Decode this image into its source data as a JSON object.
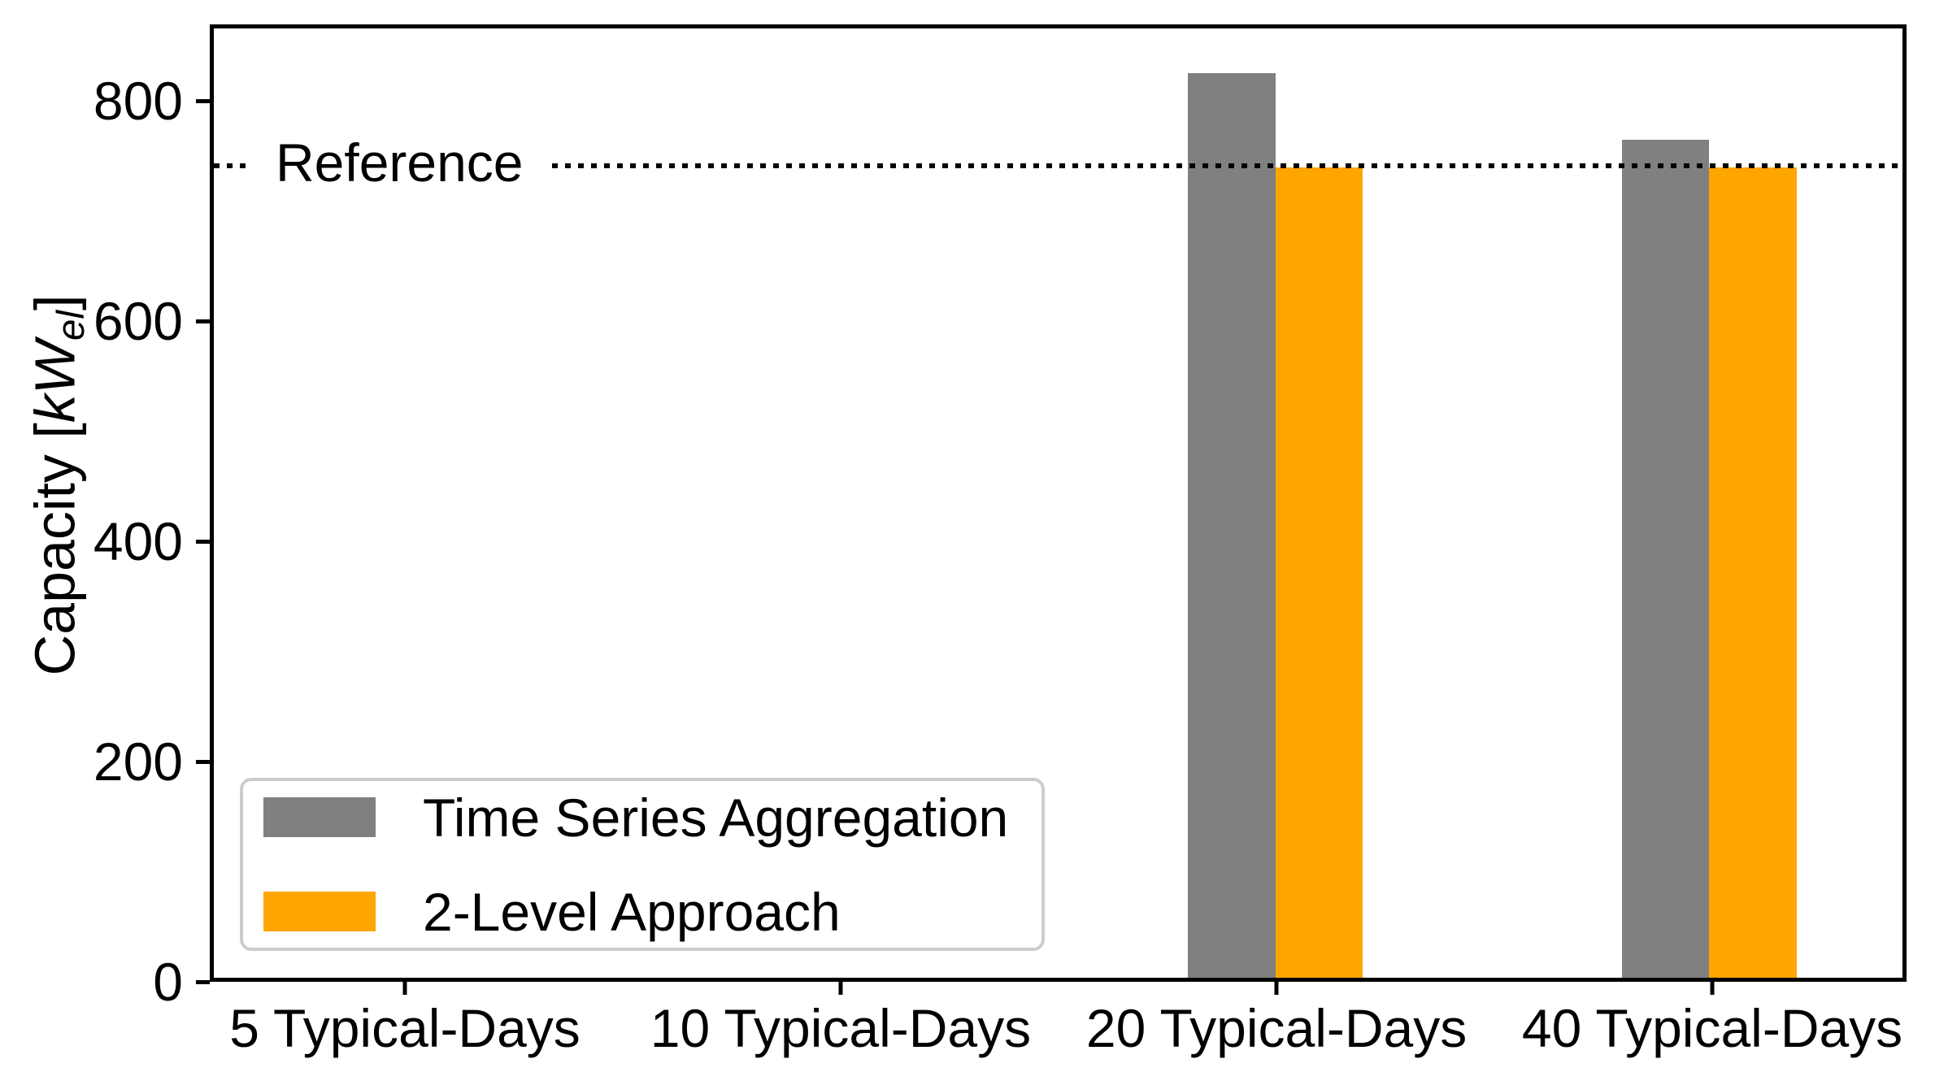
{
  "chart_data": {
    "type": "bar",
    "title": "",
    "categories": [
      "5 Typical-Days",
      "10 Typical-Days",
      "20 Typical-Days",
      "40 Typical-Days"
    ],
    "series": [
      {
        "name": "Time Series Aggregation",
        "color": "#808080",
        "values": [
          0,
          0,
          828,
          767
        ]
      },
      {
        "name": "2-Level Approach",
        "color": "#FFA500",
        "values": [
          0,
          0,
          742,
          742
        ]
      }
    ],
    "reference": {
      "label": "Reference",
      "value": 743
    },
    "ylabel": "Capacity [kW_el]",
    "ylabel_parts": {
      "prefix": "Capacity [",
      "unit": "kW",
      "sub": "el",
      "suffix": "]"
    },
    "xlabel": "",
    "y_ticks": [
      0,
      200,
      400,
      600,
      800
    ],
    "ylim": [
      0,
      869
    ],
    "grid": false,
    "legend_position": "lower left",
    "colors": {
      "bar_gray": "#808080",
      "bar_orange": "#FFA500",
      "axis": "#000000",
      "legend_border": "#cccccc",
      "background": "#ffffff"
    }
  }
}
